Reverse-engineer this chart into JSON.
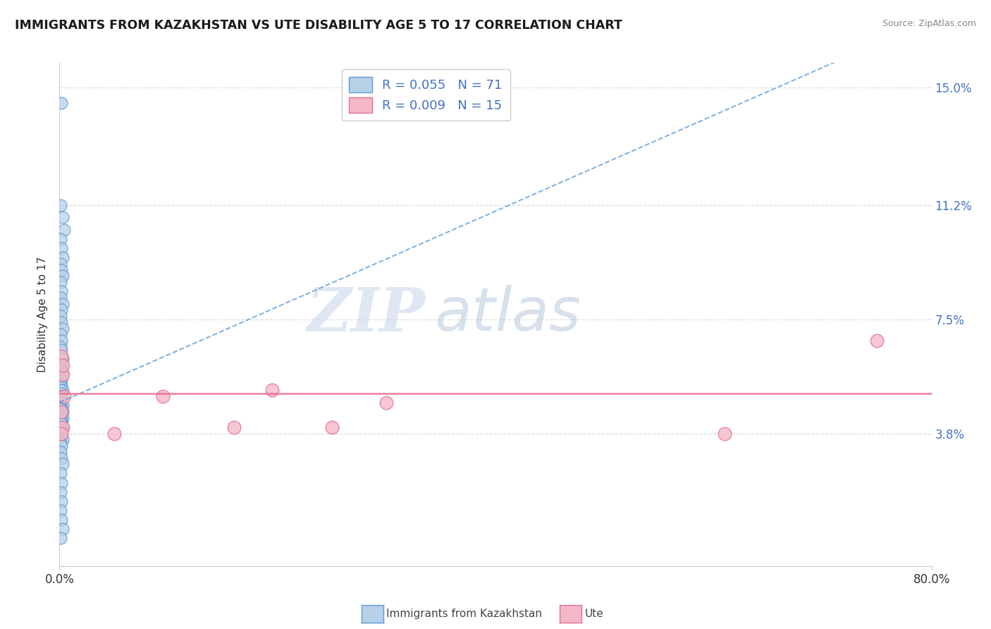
{
  "title": "IMMIGRANTS FROM KAZAKHSTAN VS UTE DISABILITY AGE 5 TO 17 CORRELATION CHART",
  "source": "Source: ZipAtlas.com",
  "ylabel": "Disability Age 5 to 17",
  "legend_label1": "Immigrants from Kazakhstan",
  "legend_label2": "Ute",
  "legend_r1": "R = 0.055",
  "legend_n1": "N = 71",
  "legend_r2": "R = 0.009",
  "legend_n2": "N = 15",
  "xlim": [
    0.0,
    0.8
  ],
  "ylim": [
    -0.005,
    0.158
  ],
  "yticks": [
    0.0,
    0.038,
    0.075,
    0.112,
    0.15
  ],
  "ytick_labels": [
    "",
    "3.8%",
    "7.5%",
    "11.2%",
    "15.0%"
  ],
  "xticks": [
    0.0,
    0.8
  ],
  "xtick_labels": [
    "0.0%",
    "80.0%"
  ],
  "color_blue_fill": "#b8d0e8",
  "color_blue_edge": "#5b9bd5",
  "color_pink_fill": "#f4b8c8",
  "color_pink_edge": "#e07090",
  "color_blue_trendline": "#5b9bd5",
  "color_pink_trendline": "#e87090",
  "color_ytick_label": "#4472c4",
  "watermark_zip": "ZIP",
  "watermark_atlas": "atlas",
  "blue_scatter_x": [
    0.002,
    0.001,
    0.003,
    0.004,
    0.001,
    0.002,
    0.003,
    0.001,
    0.002,
    0.003,
    0.001,
    0.002,
    0.001,
    0.003,
    0.002,
    0.001,
    0.002,
    0.003,
    0.001,
    0.002,
    0.001,
    0.002,
    0.001,
    0.003,
    0.002,
    0.001,
    0.002,
    0.003,
    0.001,
    0.002,
    0.001,
    0.002,
    0.003,
    0.001,
    0.002,
    0.001,
    0.002,
    0.001,
    0.002,
    0.003,
    0.001,
    0.002,
    0.001,
    0.003,
    0.002,
    0.001,
    0.002,
    0.003,
    0.001,
    0.002,
    0.001,
    0.002,
    0.003,
    0.001,
    0.002,
    0.001,
    0.002,
    0.003,
    0.001,
    0.002,
    0.001,
    0.002,
    0.003,
    0.001,
    0.002,
    0.001,
    0.002,
    0.001,
    0.002,
    0.003,
    0.001
  ],
  "blue_scatter_y": [
    0.145,
    0.112,
    0.108,
    0.104,
    0.101,
    0.098,
    0.095,
    0.093,
    0.091,
    0.089,
    0.087,
    0.084,
    0.082,
    0.08,
    0.078,
    0.076,
    0.074,
    0.072,
    0.07,
    0.068,
    0.066,
    0.065,
    0.063,
    0.062,
    0.06,
    0.059,
    0.058,
    0.057,
    0.056,
    0.055,
    0.054,
    0.053,
    0.052,
    0.052,
    0.051,
    0.05,
    0.05,
    0.049,
    0.048,
    0.047,
    0.047,
    0.046,
    0.046,
    0.045,
    0.045,
    0.044,
    0.044,
    0.043,
    0.043,
    0.042,
    0.042,
    0.041,
    0.04,
    0.04,
    0.039,
    0.038,
    0.037,
    0.036,
    0.035,
    0.034,
    0.032,
    0.03,
    0.028,
    0.025,
    0.022,
    0.019,
    0.016,
    0.013,
    0.01,
    0.007,
    0.004
  ],
  "pink_scatter_x": [
    0.002,
    0.003,
    0.004,
    0.002,
    0.003,
    0.002,
    0.05,
    0.095,
    0.16,
    0.195,
    0.25,
    0.3,
    0.61,
    0.003,
    0.75
  ],
  "pink_scatter_y": [
    0.063,
    0.057,
    0.05,
    0.045,
    0.04,
    0.038,
    0.038,
    0.05,
    0.04,
    0.052,
    0.04,
    0.048,
    0.038,
    0.06,
    0.068
  ],
  "blue_trend_x0": 0.0,
  "blue_trend_y0": 0.048,
  "blue_trend_slope": 0.155,
  "pink_trend_y": 0.051,
  "grid_color": "#dddddd",
  "grid_style": "--",
  "border_color": "#cccccc"
}
